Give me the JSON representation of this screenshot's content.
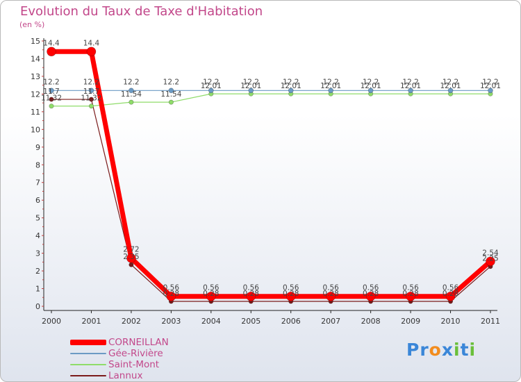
{
  "chart_data": {
    "type": "line",
    "title": "Evolution du Taux de Taxe d'Habitation",
    "subtitle": "(en %)",
    "x": [
      "2000",
      "2001",
      "2002",
      "2003",
      "2004",
      "2005",
      "2006",
      "2007",
      "2008",
      "2009",
      "2010",
      "2011"
    ],
    "ylim": [
      0,
      15
    ],
    "yticks": [
      0,
      1,
      2,
      3,
      4,
      5,
      6,
      7,
      8,
      9,
      10,
      11,
      12,
      13,
      14,
      15
    ],
    "grid": false,
    "legend_position": "bottom-left",
    "series": [
      {
        "name": "CORNEILLAN",
        "color": "#ff0000",
        "values": [
          14.4,
          14.4,
          2.72,
          0.56,
          0.56,
          0.56,
          0.56,
          0.56,
          0.56,
          0.56,
          0.56,
          2.54
        ],
        "labels": [
          "14.4",
          "14.4",
          "2.72",
          "0.56",
          "0.56",
          "0.56",
          "0.56",
          "0.56",
          "0.56",
          "0.56",
          "0.56",
          "2.54"
        ]
      },
      {
        "name": "Gée-Rivière",
        "color": "#6b9ac4",
        "values": [
          12.2,
          12.2,
          12.2,
          12.2,
          12.2,
          12.2,
          12.2,
          12.2,
          12.2,
          12.2,
          12.2,
          12.2
        ],
        "labels": [
          "12.2",
          "12.2",
          "12.2",
          "12.2",
          "12.2",
          "12.2",
          "12.2",
          "12.2",
          "12.2",
          "12.2",
          "12.2",
          "12.2"
        ]
      },
      {
        "name": "Saint-Mont",
        "color": "#8fdc6a",
        "values": [
          11.32,
          11.32,
          11.54,
          11.54,
          12.01,
          12.01,
          12.01,
          12.01,
          12.01,
          12.01,
          12.01,
          12.01
        ],
        "labels": [
          "11.32",
          "11.32",
          "11.54",
          "11.54",
          "12.01",
          "12.01",
          "12.01",
          "12.01",
          "12.01",
          "12.01",
          "12.01",
          "12.01"
        ]
      },
      {
        "name": "Lannux",
        "color": "#7a1a1a",
        "values": [
          11.7,
          11.7,
          2.35,
          0.28,
          0.28,
          0.28,
          0.28,
          0.28,
          0.28,
          0.28,
          0.28,
          2.25
        ],
        "labels": [
          "11.7",
          "11.7",
          "2.35",
          "0.28",
          "0.28",
          "0.28",
          "0.28",
          "0.28",
          "0.28",
          "0.28",
          "0.28",
          "2.25"
        ]
      }
    ]
  },
  "legend": [
    {
      "label": "CORNEILLAN"
    },
    {
      "label": "Gée-Rivière"
    },
    {
      "label": "Saint-Mont"
    },
    {
      "label": "Lannux"
    }
  ],
  "logo": {
    "text": "Proxiti",
    "letters": [
      {
        "ch": "P",
        "color": "#3a86d8"
      },
      {
        "ch": "r",
        "color": "#3a86d8"
      },
      {
        "ch": "o",
        "color": "#f28c1e"
      },
      {
        "ch": "x",
        "color": "#3a86d8"
      },
      {
        "ch": "i",
        "color": "#6abf3a"
      },
      {
        "ch": "t",
        "color": "#3a86d8"
      },
      {
        "ch": "i",
        "color": "#6abf3a"
      }
    ]
  }
}
